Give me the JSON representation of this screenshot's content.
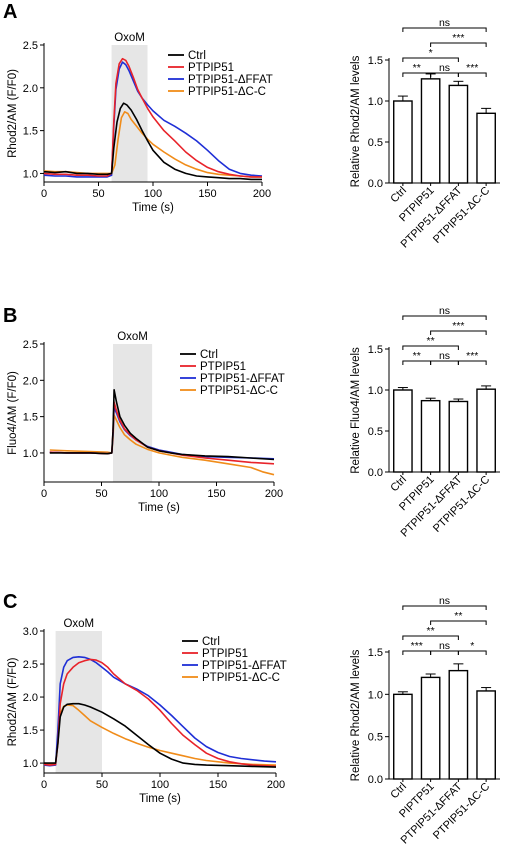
{
  "colors": {
    "Ctrl": "#000000",
    "PTPIP51": "#e8232a",
    "PTPIP51-ΔFFAT": "#1f2fd6",
    "PTPIP51-ΔC-C": "#f08c1a",
    "stim_shade": "#e6e6e6"
  },
  "chart_data": [
    {
      "panel": "A",
      "type": "line",
      "xlabel": "Time (s)",
      "ylabel": "Rhod2/AM (F/F0)",
      "xlim": [
        0,
        200
      ],
      "ylim": [
        0.9,
        2.5
      ],
      "xticks": [
        "0",
        "50",
        "100",
        "150",
        "200"
      ],
      "yticks": [
        "1.0",
        "1.5",
        "2.0",
        "2.5"
      ],
      "stimulus": {
        "label": "OxoM",
        "start": 62,
        "end": 95
      },
      "legend_position": "top-right",
      "series": [
        {
          "name": "Ctrl",
          "x": [
            0,
            10,
            20,
            30,
            40,
            50,
            58,
            62,
            64,
            67,
            70,
            73,
            76,
            80,
            85,
            90,
            95,
            100,
            110,
            120,
            130,
            140,
            150,
            160,
            170,
            180,
            190,
            200
          ],
          "y": [
            1.02,
            1.01,
            1.02,
            1.0,
            1.0,
            0.99,
            0.99,
            1.0,
            1.3,
            1.6,
            1.76,
            1.82,
            1.8,
            1.74,
            1.63,
            1.5,
            1.38,
            1.27,
            1.13,
            1.05,
            1.0,
            0.97,
            0.96,
            0.95,
            0.94,
            0.94,
            0.93,
            0.93
          ]
        },
        {
          "name": "PTPIP51",
          "x": [
            0,
            10,
            20,
            30,
            40,
            50,
            58,
            62,
            64,
            66,
            69,
            72,
            75,
            78,
            82,
            86,
            90,
            95,
            100,
            110,
            120,
            130,
            140,
            150,
            160,
            170,
            180,
            190,
            200
          ],
          "y": [
            1.0,
            0.99,
            0.99,
            0.98,
            0.98,
            0.97,
            0.97,
            1.0,
            1.6,
            2.05,
            2.28,
            2.34,
            2.32,
            2.25,
            2.12,
            1.98,
            1.88,
            1.76,
            1.66,
            1.5,
            1.38,
            1.25,
            1.15,
            1.07,
            1.02,
            0.99,
            0.97,
            0.96,
            0.96
          ]
        },
        {
          "name": "PTPIP51-ΔFFAT",
          "x": [
            0,
            10,
            20,
            30,
            40,
            50,
            58,
            62,
            64,
            66,
            69,
            72,
            75,
            78,
            82,
            86,
            90,
            95,
            100,
            110,
            120,
            130,
            140,
            150,
            160,
            170,
            180,
            190,
            200
          ],
          "y": [
            0.98,
            0.97,
            0.97,
            0.96,
            0.96,
            0.96,
            0.96,
            0.98,
            1.55,
            1.98,
            2.22,
            2.3,
            2.27,
            2.2,
            2.08,
            1.96,
            1.88,
            1.8,
            1.73,
            1.62,
            1.55,
            1.47,
            1.38,
            1.27,
            1.15,
            1.05,
            1.0,
            0.98,
            0.97
          ]
        },
        {
          "name": "PTPIP51-ΔC-C",
          "x": [
            0,
            10,
            20,
            30,
            40,
            50,
            58,
            62,
            65,
            68,
            71,
            74,
            77,
            80,
            85,
            90,
            95,
            100,
            110,
            120,
            130,
            140,
            150,
            160,
            170,
            180,
            190,
            200
          ],
          "y": [
            1.03,
            1.02,
            1.02,
            1.01,
            1.0,
            1.0,
            1.0,
            1.0,
            1.1,
            1.4,
            1.65,
            1.72,
            1.7,
            1.63,
            1.55,
            1.47,
            1.4,
            1.34,
            1.25,
            1.17,
            1.1,
            1.05,
            1.01,
            0.99,
            0.98,
            0.97,
            0.96,
            0.96
          ]
        }
      ]
    },
    {
      "panel": "A",
      "type": "bar",
      "ylabel": "Relative Rhod2/AM levels",
      "ylim": [
        0,
        1.5
      ],
      "yticks": [
        "0.0",
        "0.5",
        "1.0",
        "1.5"
      ],
      "categories": [
        "Ctrl",
        "PTPIP51",
        "PTPIP51-ΔFFAT",
        "PTPIP51-ΔC-C"
      ],
      "values": [
        1.0,
        1.27,
        1.19,
        0.85
      ],
      "errors": [
        0.06,
        0.06,
        0.05,
        0.06
      ],
      "significance": [
        {
          "a": 0,
          "b": 3,
          "label": "ns"
        },
        {
          "a": 1,
          "b": 3,
          "label": "***"
        },
        {
          "a": 0,
          "b": 2,
          "label": "*"
        },
        {
          "a": 0,
          "b": 1,
          "label": "**"
        },
        {
          "a": 1,
          "b": 2,
          "label": "ns"
        },
        {
          "a": 2,
          "b": 3,
          "label": "***"
        }
      ]
    },
    {
      "panel": "B",
      "type": "line",
      "xlabel": "Time (s)",
      "ylabel": "Fluo4/AM (F/F0)",
      "xlim": [
        0,
        200
      ],
      "ylim": [
        0.6,
        2.5
      ],
      "xticks": [
        "0",
        "50",
        "100",
        "150",
        "200"
      ],
      "yticks": [
        "1.0",
        "1.5",
        "2.0",
        "2.5"
      ],
      "stimulus": {
        "label": "OxoM",
        "start": 60,
        "end": 94
      },
      "legend_position": "top-right",
      "series": [
        {
          "name": "Ctrl",
          "x": [
            5,
            20,
            40,
            55,
            59,
            60,
            61,
            63,
            66,
            70,
            75,
            80,
            90,
            100,
            110,
            120,
            140,
            160,
            180,
            200
          ],
          "y": [
            1.0,
            1.0,
            1.0,
            0.99,
            1.0,
            1.3,
            1.87,
            1.7,
            1.5,
            1.38,
            1.27,
            1.2,
            1.08,
            1.03,
            1.0,
            0.98,
            0.96,
            0.95,
            0.93,
            0.91
          ]
        },
        {
          "name": "PTPIP51",
          "x": [
            5,
            20,
            40,
            55,
            59,
            60,
            61,
            63,
            66,
            70,
            75,
            80,
            90,
            100,
            110,
            120,
            140,
            160,
            180,
            200
          ],
          "y": [
            1.01,
            1.0,
            1.0,
            0.99,
            1.0,
            1.3,
            1.7,
            1.58,
            1.45,
            1.33,
            1.25,
            1.18,
            1.08,
            1.03,
            1.0,
            0.97,
            0.93,
            0.9,
            0.87,
            0.85
          ]
        },
        {
          "name": "PTPIP51-ΔFFAT",
          "x": [
            5,
            20,
            40,
            55,
            59,
            60,
            61,
            63,
            66,
            70,
            75,
            80,
            90,
            100,
            110,
            120,
            140,
            160,
            180,
            200
          ],
          "y": [
            1.01,
            1.0,
            1.0,
            0.99,
            1.0,
            1.25,
            1.62,
            1.55,
            1.43,
            1.32,
            1.24,
            1.18,
            1.09,
            1.04,
            1.01,
            0.98,
            0.95,
            0.94,
            0.93,
            0.92
          ]
        },
        {
          "name": "PTPIP51-ΔC-C",
          "x": [
            5,
            20,
            40,
            55,
            59,
            60,
            61,
            63,
            66,
            70,
            75,
            80,
            90,
            100,
            110,
            120,
            140,
            160,
            180,
            190,
            200
          ],
          "y": [
            1.04,
            1.03,
            1.02,
            1.01,
            1.0,
            1.2,
            1.52,
            1.45,
            1.35,
            1.25,
            1.18,
            1.12,
            1.05,
            1.0,
            0.97,
            0.94,
            0.9,
            0.85,
            0.8,
            0.74,
            0.7
          ]
        }
      ]
    },
    {
      "panel": "B",
      "type": "bar",
      "ylabel": "Relative Fluo4/AM levels",
      "ylim": [
        0,
        1.5
      ],
      "yticks": [
        "0.0",
        "0.5",
        "1.0",
        "1.5"
      ],
      "categories": [
        "Ctrl",
        "PTPIP51",
        "PTPIP51-ΔFFAT",
        "PTPIP51-ΔC-C"
      ],
      "values": [
        1.0,
        0.87,
        0.86,
        1.01
      ],
      "errors": [
        0.03,
        0.03,
        0.03,
        0.04
      ],
      "significance": [
        {
          "a": 0,
          "b": 3,
          "label": "ns"
        },
        {
          "a": 1,
          "b": 3,
          "label": "***"
        },
        {
          "a": 0,
          "b": 2,
          "label": "**"
        },
        {
          "a": 0,
          "b": 1,
          "label": "**"
        },
        {
          "a": 1,
          "b": 2,
          "label": "ns"
        },
        {
          "a": 2,
          "b": 3,
          "label": "***"
        }
      ]
    },
    {
      "panel": "C",
      "type": "line",
      "xlabel": "Time (s)",
      "ylabel": "Rhod2/AM (F/F0)",
      "xlim": [
        0,
        200
      ],
      "ylim": [
        0.85,
        3.0
      ],
      "xticks": [
        "0",
        "50",
        "100",
        "150",
        "200"
      ],
      "yticks": [
        "1.0",
        "1.5",
        "2.0",
        "2.5",
        "3.0"
      ],
      "stimulus": {
        "label": "OxoM",
        "start": 10,
        "end": 50
      },
      "legend_position": "top-right",
      "series": [
        {
          "name": "Ctrl",
          "x": [
            0,
            5,
            10,
            12,
            14,
            17,
            20,
            25,
            30,
            35,
            40,
            50,
            60,
            70,
            80,
            90,
            100,
            110,
            120,
            130,
            140,
            160,
            180,
            200
          ],
          "y": [
            1.0,
            1.0,
            1.0,
            1.3,
            1.7,
            1.85,
            1.89,
            1.9,
            1.9,
            1.88,
            1.85,
            1.77,
            1.67,
            1.56,
            1.42,
            1.28,
            1.15,
            1.06,
            1.0,
            0.98,
            0.97,
            0.96,
            0.95,
            0.94
          ]
        },
        {
          "name": "PTPIP51",
          "x": [
            0,
            5,
            10,
            12,
            14,
            17,
            20,
            25,
            30,
            35,
            40,
            45,
            50,
            55,
            60,
            70,
            80,
            90,
            100,
            110,
            120,
            130,
            140,
            150,
            160,
            170,
            180,
            190,
            200
          ],
          "y": [
            0.98,
            0.97,
            0.98,
            1.3,
            1.9,
            2.2,
            2.35,
            2.45,
            2.52,
            2.55,
            2.57,
            2.56,
            2.52,
            2.45,
            2.35,
            2.2,
            2.1,
            1.97,
            1.8,
            1.6,
            1.42,
            1.28,
            1.15,
            1.07,
            1.02,
            0.99,
            0.97,
            0.96,
            0.95
          ]
        },
        {
          "name": "PTPIP51-ΔFFAT",
          "x": [
            0,
            5,
            10,
            12,
            14,
            17,
            20,
            25,
            30,
            35,
            40,
            45,
            50,
            55,
            60,
            70,
            80,
            90,
            100,
            110,
            120,
            130,
            140,
            150,
            160,
            170,
            180,
            190,
            200
          ],
          "y": [
            0.97,
            0.96,
            0.97,
            1.5,
            2.2,
            2.45,
            2.55,
            2.6,
            2.61,
            2.6,
            2.57,
            2.52,
            2.45,
            2.38,
            2.3,
            2.2,
            2.12,
            2.02,
            1.88,
            1.72,
            1.55,
            1.38,
            1.25,
            1.16,
            1.1,
            1.07,
            1.05,
            1.03,
            1.02
          ]
        },
        {
          "name": "PTPIP51-ΔC-C",
          "x": [
            0,
            5,
            10,
            12,
            14,
            17,
            20,
            25,
            30,
            35,
            40,
            50,
            60,
            70,
            80,
            90,
            100,
            110,
            120,
            130,
            140,
            160,
            180,
            200
          ],
          "y": [
            0.99,
            0.99,
            0.99,
            1.4,
            1.75,
            1.86,
            1.88,
            1.87,
            1.8,
            1.72,
            1.64,
            1.54,
            1.45,
            1.37,
            1.3,
            1.24,
            1.19,
            1.15,
            1.11,
            1.07,
            1.04,
            1.0,
            0.98,
            0.97
          ]
        }
      ]
    },
    {
      "panel": "C",
      "type": "bar",
      "ylabel": "Relative Rhod2/AM levels",
      "ylim": [
        0,
        1.5
      ],
      "yticks": [
        "0.0",
        "0.5",
        "1.0",
        "1.5"
      ],
      "categories": [
        "Ctrl",
        "PIPTP51",
        "PTPIP51-ΔFFAT",
        "PTPIP51-ΔC-C"
      ],
      "values": [
        1.0,
        1.2,
        1.28,
        1.04
      ],
      "errors": [
        0.03,
        0.04,
        0.08,
        0.04
      ],
      "significance": [
        {
          "a": 0,
          "b": 3,
          "label": "ns"
        },
        {
          "a": 1,
          "b": 3,
          "label": "**"
        },
        {
          "a": 0,
          "b": 2,
          "label": "**"
        },
        {
          "a": 0,
          "b": 1,
          "label": "***"
        },
        {
          "a": 1,
          "b": 2,
          "label": "ns"
        },
        {
          "a": 2,
          "b": 3,
          "label": "*"
        }
      ]
    }
  ]
}
